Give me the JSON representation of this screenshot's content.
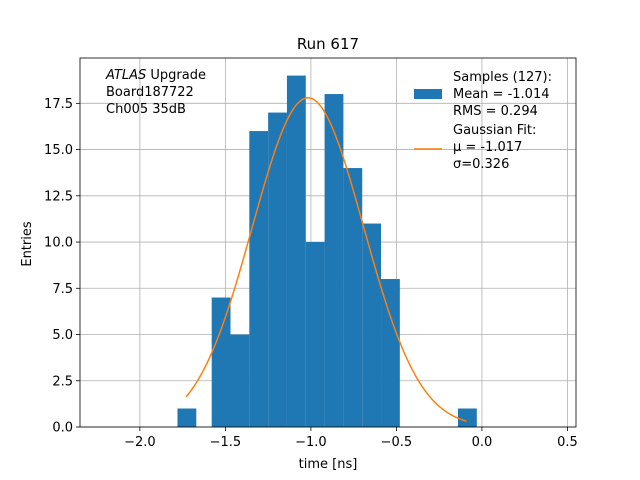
{
  "chart_data": {
    "type": "bar",
    "title": "Run 617",
    "xlabel": "time [ns]",
    "ylabel": "Entries",
    "xlim": [
      -2.35,
      0.55
    ],
    "ylim": [
      0,
      19.95
    ],
    "grid": true,
    "xticks": [
      -2.0,
      -1.5,
      -1.0,
      -0.5,
      0.0,
      0.5
    ],
    "xtick_labels": [
      "−2.0",
      "−1.5",
      "−1.0",
      "−0.5",
      "0.0",
      "0.5"
    ],
    "yticks": [
      0,
      2.5,
      5,
      7.5,
      10,
      12.5,
      15,
      17.5
    ],
    "ytick_labels": [
      "0.0",
      "2.5",
      "5.0",
      "7.5",
      "10.0",
      "12.5",
      "15.0",
      "17.5"
    ],
    "histogram": {
      "bins": [
        {
          "x0": -1.78,
          "x1": -1.67,
          "value": 1
        },
        {
          "x0": -1.58,
          "x1": -1.47,
          "value": 7
        },
        {
          "x0": -1.47,
          "x1": -1.36,
          "value": 5
        },
        {
          "x0": -1.36,
          "x1": -1.25,
          "value": 16
        },
        {
          "x0": -1.25,
          "x1": -1.14,
          "value": 17
        },
        {
          "x0": -1.14,
          "x1": -1.03,
          "value": 19
        },
        {
          "x0": -1.03,
          "x1": -0.92,
          "value": 10
        },
        {
          "x0": -0.92,
          "x1": -0.81,
          "value": 18
        },
        {
          "x0": -0.81,
          "x1": -0.7,
          "value": 14
        },
        {
          "x0": -0.7,
          "x1": -0.59,
          "value": 11
        },
        {
          "x0": -0.59,
          "x1": -0.48,
          "value": 8
        },
        {
          "x0": -0.14,
          "x1": -0.03,
          "value": 1
        }
      ],
      "color": "#1f77b4"
    },
    "fit": {
      "type": "gaussian",
      "amplitude": 17.8,
      "mu": -1.017,
      "sigma": 0.326,
      "x_range": [
        -1.73,
        -0.09
      ],
      "color": "#ff7f0e"
    },
    "legend": {
      "placement": "top-right",
      "entries": [
        {
          "kind": "patch",
          "lines": [
            "Samples (127):",
            " Mean = -1.014",
            " RMS = 0.294"
          ]
        },
        {
          "kind": "line",
          "lines": [
            "Gaussian Fit:",
            " μ = -1.017",
            " σ=0.326"
          ]
        }
      ]
    },
    "annotation": {
      "lines": [
        {
          "italic": "ATLAS",
          "rest": " Upgrade"
        },
        {
          "italic": "",
          "rest": " Board187722"
        },
        {
          "italic": "",
          "rest": " Ch005 35dB"
        }
      ]
    }
  }
}
